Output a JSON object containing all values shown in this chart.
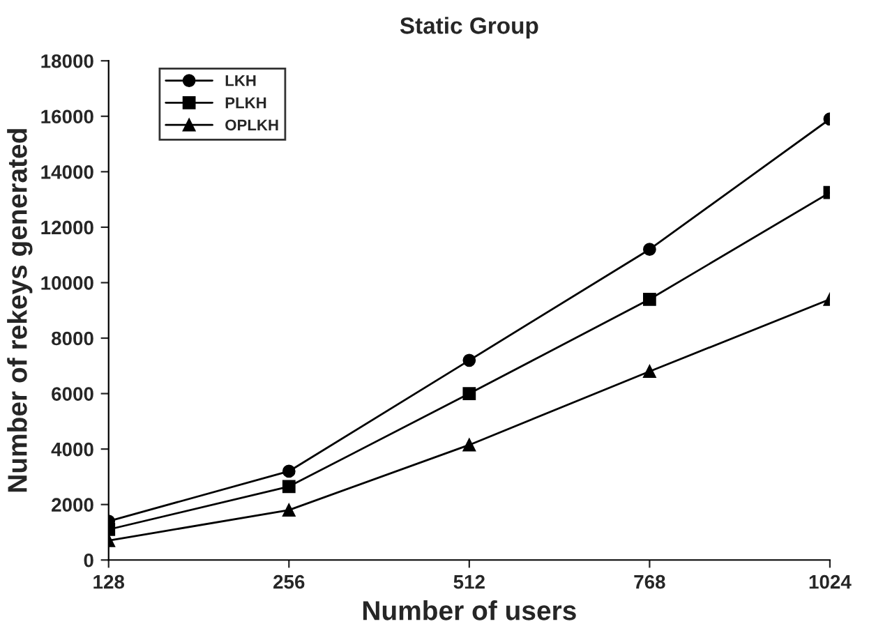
{
  "chart_data": {
    "type": "line",
    "title": "Static Group",
    "xlabel": "Number of users",
    "ylabel": "Number of rekeys generated",
    "categories": [
      "128",
      "256",
      "512",
      "768",
      "1024"
    ],
    "series": [
      {
        "name": "LKH",
        "color": "#000000",
        "marker": "circle",
        "values": [
          1400,
          3200,
          7200,
          11200,
          15900
        ]
      },
      {
        "name": "PLKH",
        "color": "#000000",
        "marker": "square",
        "values": [
          1100,
          2650,
          6000,
          9400,
          13250
        ]
      },
      {
        "name": "OPLKH",
        "color": "#000000",
        "marker": "triangle",
        "values": [
          700,
          1800,
          4150,
          6800,
          9400
        ]
      }
    ],
    "ylim": [
      0,
      18000
    ],
    "yticks": [
      0,
      2000,
      4000,
      6000,
      8000,
      10000,
      12000,
      14000,
      16000,
      18000
    ],
    "grid": false,
    "legend": "top left",
    "line_style": "solid"
  }
}
